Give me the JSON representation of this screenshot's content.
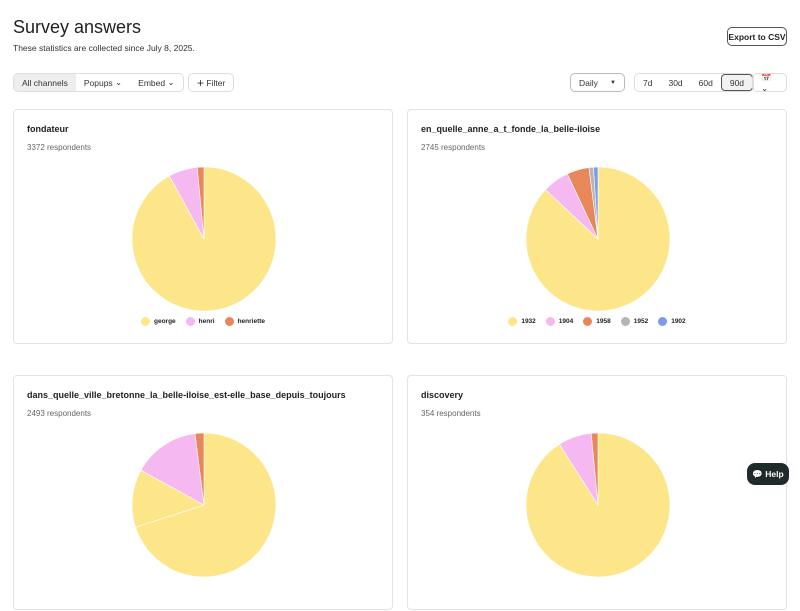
{
  "header": {
    "title": "Survey answers",
    "subtitle": "These statistics are collected since July 8, 2025.",
    "export": "Export to CSV"
  },
  "toolbar": {
    "channels": [
      "All channels",
      "Popups",
      "Embed"
    ],
    "filter": "Filter",
    "interval": "Daily",
    "ranges": [
      "7d",
      "30d",
      "60d",
      "90d"
    ]
  },
  "cards": [
    {
      "title": "fondateur",
      "respondents": "3372 respondents",
      "chart_data": {
        "type": "pie",
        "categories": [
          "george",
          "henri",
          "henriette"
        ],
        "values": [
          92,
          6.5,
          1.5
        ],
        "colors": [
          "#fde68a",
          "#f5b8f0",
          "#e8875a"
        ]
      }
    },
    {
      "title": "en_quelle_anne_a_t_fonde_la_belle-iloise",
      "respondents": "2745 respondents",
      "chart_data": {
        "type": "pie",
        "categories": [
          "1932",
          "1904",
          "1958",
          "1952",
          "1902"
        ],
        "values": [
          87,
          6,
          5,
          1,
          1
        ],
        "colors": [
          "#fde68a",
          "#f5b8f0",
          "#e8875a",
          "#b5b5b5",
          "#7b9ae8"
        ]
      }
    },
    {
      "title": "dans_quelle_ville_bretonne_la_belle-iloise_est-elle_base_depuis_toujours",
      "respondents": "2493 respondents",
      "chart_data": {
        "type": "pie",
        "categories": [
          null,
          null,
          null,
          null
        ],
        "values": [
          70,
          13,
          15,
          2
        ],
        "colors": [
          "#fde68a",
          "#fde68a",
          "#f5b8f0",
          "#e8875a"
        ]
      }
    },
    {
      "title": "discovery",
      "respondents": "354 respondents",
      "chart_data": {
        "type": "pie",
        "categories": [
          null,
          null,
          null
        ],
        "values": [
          91,
          7.5,
          1.5
        ],
        "colors": [
          "#fde68a",
          "#f5b8f0",
          "#e8875a"
        ]
      }
    }
  ],
  "help": "Help"
}
